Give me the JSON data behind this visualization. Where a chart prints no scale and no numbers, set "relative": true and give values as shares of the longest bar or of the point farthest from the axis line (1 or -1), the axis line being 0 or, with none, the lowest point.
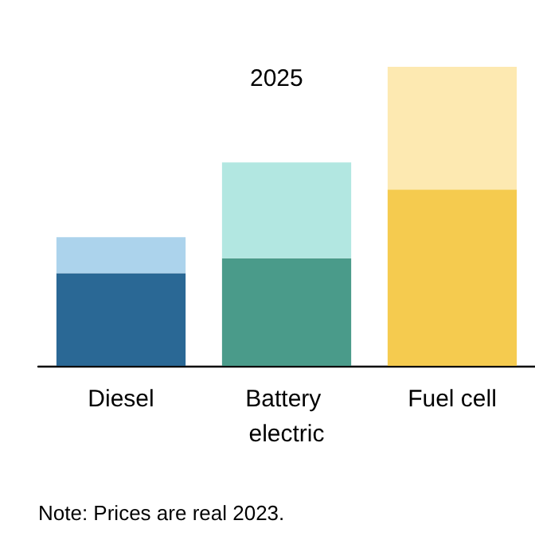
{
  "chart_data": {
    "type": "bar",
    "title": "2025",
    "categories": [
      "Diesel",
      "Battery electric",
      "Fuel cell"
    ],
    "stacked": true,
    "relative": true,
    "series": [
      {
        "colors": [
          "#2a6895",
          "#4a9b8a",
          "#f5cb4f"
        ],
        "values": [
          0.31,
          0.36,
          0.59
        ]
      },
      {
        "colors": [
          "#acd3ec",
          "#b2e7e1",
          "#fde9b1"
        ],
        "values": [
          0.12,
          0.32,
          0.41
        ]
      }
    ],
    "annotations": [
      "Note: Prices are real 2023."
    ]
  }
}
